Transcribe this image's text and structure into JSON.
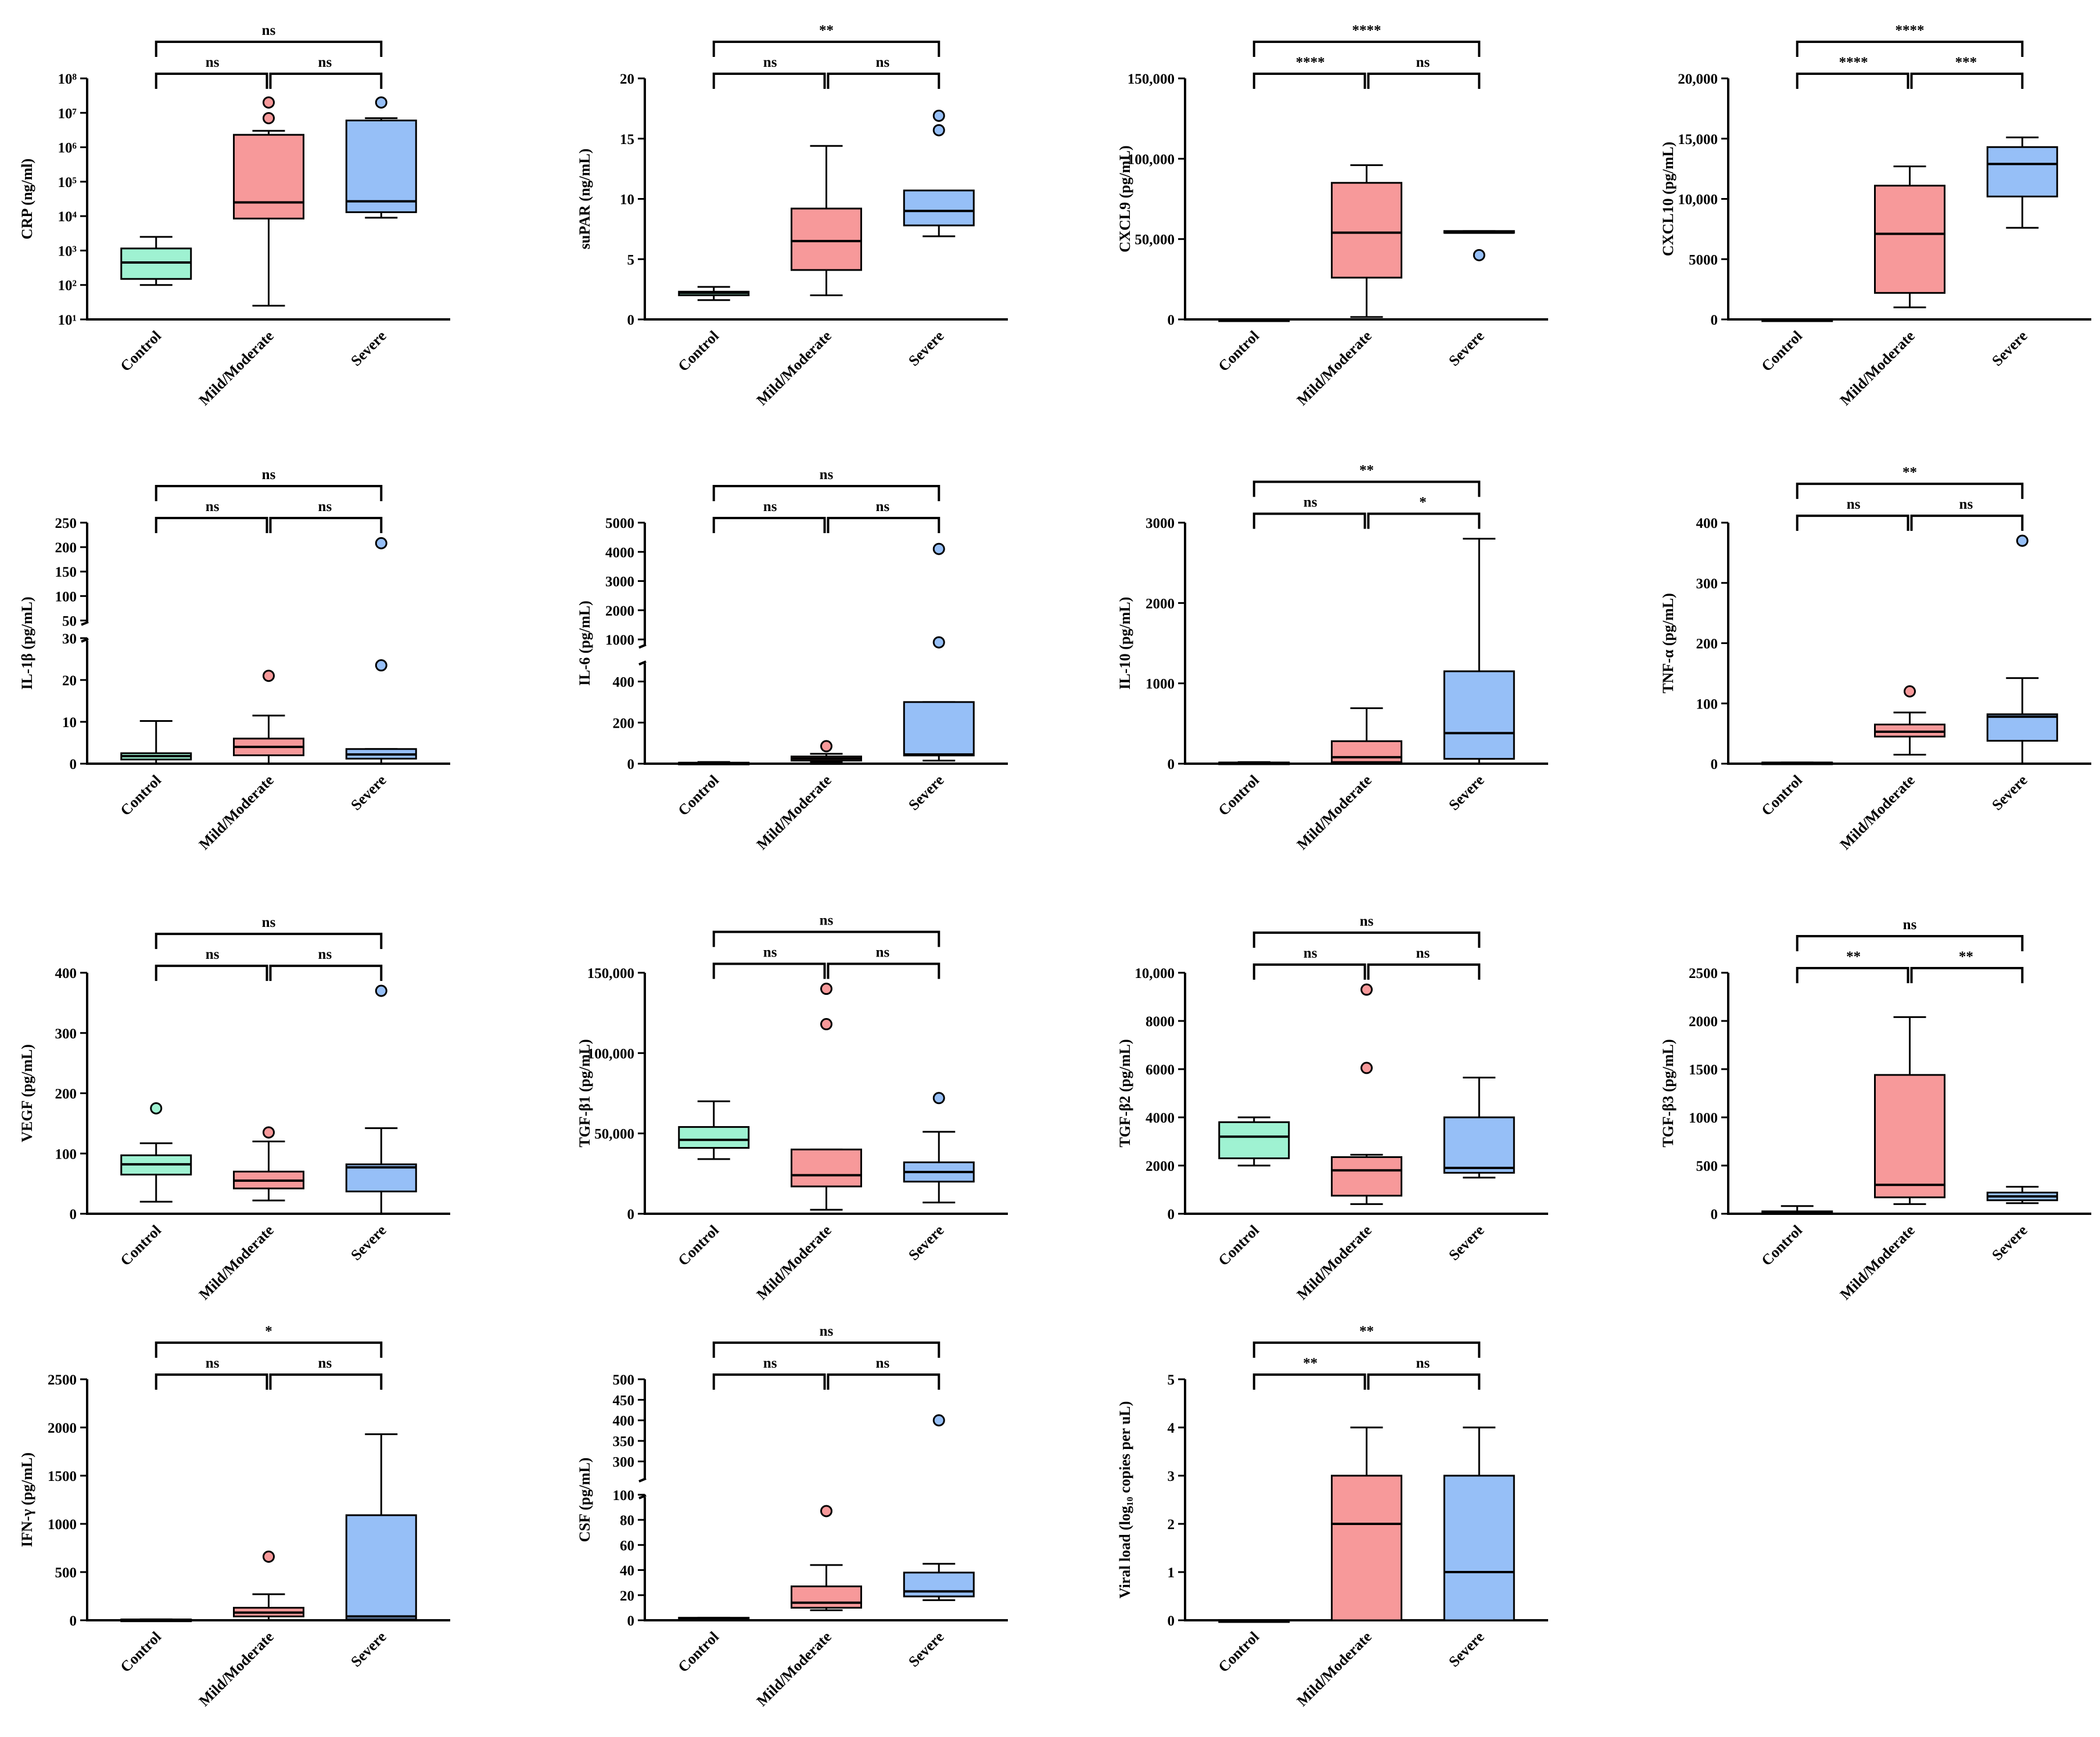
{
  "colors": {
    "Control": "#9ff2d2",
    "Mild/Moderate": "#f7999a",
    "Severe": "#96bff7"
  },
  "chart_data": [
    {
      "type": "box",
      "ylabel": "CRP (ng/ml)",
      "scale": "log",
      "ylim": [
        10,
        100000000
      ],
      "yticks": [
        10,
        100,
        1000,
        10000,
        100000,
        1000000,
        10000000,
        100000000
      ],
      "ytick_labels": [
        "10¹",
        "10²",
        "10³",
        "10⁴",
        "10⁵",
        "10⁶",
        "10⁷",
        "10⁸"
      ],
      "categories": [
        "Control",
        "Mild/Moderate",
        "Severe"
      ],
      "boxes": [
        {
          "min": 100,
          "q1": 150,
          "median": 450,
          "q3": 1150,
          "max": 2500,
          "outliers": []
        },
        {
          "min": 25,
          "q1": 8500,
          "median": 25000,
          "q3": 2300000,
          "max": 3000000,
          "outliers": [
            20000000,
            7000000
          ]
        },
        {
          "min": 9000,
          "q1": 13000,
          "median": 27000,
          "q3": 6000000,
          "max": 7000000,
          "outliers": [
            20000000
          ]
        }
      ],
      "significance": [
        {
          "from": 0,
          "to": 1,
          "label": "ns"
        },
        {
          "from": 1,
          "to": 2,
          "label": "ns"
        },
        {
          "from": 0,
          "to": 2,
          "label": "ns"
        }
      ]
    },
    {
      "type": "box",
      "ylabel": "suPAR (ng/mL)",
      "scale": "linear",
      "ylim": [
        0,
        20
      ],
      "yticks": [
        0,
        5,
        10,
        15,
        20
      ],
      "categories": [
        "Control",
        "Mild/Moderate",
        "Severe"
      ],
      "boxes": [
        {
          "min": 1.6,
          "q1": 2.0,
          "median": 2.2,
          "q3": 2.3,
          "max": 2.7,
          "outliers": []
        },
        {
          "min": 2.0,
          "q1": 4.1,
          "median": 6.5,
          "q3": 9.2,
          "max": 14.4,
          "outliers": []
        },
        {
          "min": 6.9,
          "q1": 7.8,
          "median": 9.0,
          "q3": 10.7,
          "max": 10.7,
          "outliers": [
            15.7,
            16.9
          ]
        }
      ],
      "significance": [
        {
          "from": 0,
          "to": 1,
          "label": "ns"
        },
        {
          "from": 1,
          "to": 2,
          "label": "ns"
        },
        {
          "from": 0,
          "to": 2,
          "label": "**"
        }
      ]
    },
    {
      "type": "box",
      "ylabel": "CXCL9 (pg/mL)",
      "scale": "linear",
      "ylim": [
        0,
        150000
      ],
      "yticks": [
        0,
        50000,
        100000,
        150000
      ],
      "ytick_labels": [
        "0",
        "50,000",
        "100,000",
        "150,000"
      ],
      "categories": [
        "Control",
        "Mild/Moderate",
        "Severe"
      ],
      "boxes": [
        {
          "min": 0,
          "q1": 0,
          "median": 0,
          "q3": 0,
          "max": 0,
          "outliers": []
        },
        {
          "min": 1500,
          "q1": 26000,
          "median": 54000,
          "q3": 85000,
          "max": 96000,
          "outliers": []
        },
        {
          "min": 54000,
          "q1": 54000,
          "median": 54000,
          "q3": 55000,
          "max": 55000,
          "outliers": [
            40000
          ]
        }
      ],
      "significance": [
        {
          "from": 0,
          "to": 1,
          "label": "****"
        },
        {
          "from": 1,
          "to": 2,
          "label": "ns"
        },
        {
          "from": 0,
          "to": 2,
          "label": "****"
        }
      ]
    },
    {
      "type": "box",
      "ylabel": "CXCL10 (pg/mL)",
      "scale": "linear",
      "ylim": [
        0,
        20000
      ],
      "yticks": [
        0,
        5000,
        10000,
        15000,
        20000
      ],
      "ytick_labels": [
        "0",
        "5000",
        "10,000",
        "15,000",
        "20,000"
      ],
      "categories": [
        "Control",
        "Mild/Moderate",
        "Severe"
      ],
      "boxes": [
        {
          "min": 0,
          "q1": 0,
          "median": 0,
          "q3": 0,
          "max": 0,
          "outliers": []
        },
        {
          "min": 1000,
          "q1": 2200,
          "median": 7100,
          "q3": 11100,
          "max": 12700,
          "outliers": []
        },
        {
          "min": 7600,
          "q1": 10200,
          "median": 12900,
          "q3": 14300,
          "max": 15100,
          "outliers": []
        }
      ],
      "significance": [
        {
          "from": 0,
          "to": 1,
          "label": "****"
        },
        {
          "from": 1,
          "to": 2,
          "label": "***"
        },
        {
          "from": 0,
          "to": 2,
          "label": "****"
        }
      ]
    },
    {
      "type": "box",
      "ylabel": "IL-1β (pg/mL)",
      "scale": "broken",
      "ylim": [
        0,
        250
      ],
      "segments": [
        {
          "min": 0,
          "max": 30,
          "frac": 0.55,
          "ticks": [
            0,
            10,
            20,
            30
          ]
        },
        {
          "min": 40,
          "max": 250,
          "frac": 0.45,
          "ticks": [
            50,
            100,
            150,
            200,
            250
          ]
        }
      ],
      "categories": [
        "Control",
        "Mild/Moderate",
        "Severe"
      ],
      "boxes": [
        {
          "min": 0,
          "q1": 1,
          "median": 1.8,
          "q3": 2.5,
          "max": 10.2,
          "outliers": []
        },
        {
          "min": 0,
          "q1": 2,
          "median": 4,
          "q3": 6,
          "max": 11.5,
          "outliers": [
            21
          ]
        },
        {
          "min": 0,
          "q1": 1.2,
          "median": 2.2,
          "q3": 3.5,
          "max": 3.5,
          "outliers": [
            23.5,
            208
          ]
        }
      ],
      "significance": [
        {
          "from": 0,
          "to": 1,
          "label": "ns"
        },
        {
          "from": 1,
          "to": 2,
          "label": "ns"
        },
        {
          "from": 0,
          "to": 2,
          "label": "ns"
        }
      ]
    },
    {
      "type": "box",
      "ylabel": "IL-6 (pg/mL)",
      "scale": "broken",
      "ylim": [
        0,
        5000
      ],
      "segments": [
        {
          "min": 0,
          "max": 500,
          "frac": 0.45,
          "ticks": [
            0,
            200,
            400
          ]
        },
        {
          "min": 700,
          "max": 5000,
          "frac": 0.55,
          "ticks": [
            1000,
            2000,
            3000,
            4000,
            5000
          ]
        }
      ],
      "categories": [
        "Control",
        "Mild/Moderate",
        "Severe"
      ],
      "boxes": [
        {
          "min": 0,
          "q1": 0,
          "median": 3,
          "q3": 5,
          "max": 8,
          "outliers": []
        },
        {
          "min": 8,
          "q1": 15,
          "median": 25,
          "q3": 35,
          "max": 48,
          "outliers": [
            85
          ]
        },
        {
          "min": 15,
          "q1": 40,
          "median": 45,
          "q3": 300,
          "max": 300,
          "outliers": [
            900,
            4100
          ]
        }
      ],
      "significance": [
        {
          "from": 0,
          "to": 1,
          "label": "ns"
        },
        {
          "from": 1,
          "to": 2,
          "label": "ns"
        },
        {
          "from": 0,
          "to": 2,
          "label": "ns"
        }
      ]
    },
    {
      "type": "box",
      "ylabel": "IL-10 (pg/mL)",
      "scale": "linear",
      "ylim": [
        0,
        3000
      ],
      "yticks": [
        0,
        1000,
        2000,
        3000
      ],
      "categories": [
        "Control",
        "Mild/Moderate",
        "Severe"
      ],
      "boxes": [
        {
          "min": 0,
          "q1": 5,
          "median": 10,
          "q3": 15,
          "max": 20,
          "outliers": []
        },
        {
          "min": 0,
          "q1": 20,
          "median": 80,
          "q3": 280,
          "max": 690,
          "outliers": []
        },
        {
          "min": 0,
          "q1": 60,
          "median": 380,
          "q3": 1150,
          "max": 2800,
          "outliers": []
        }
      ],
      "significance": [
        {
          "from": 0,
          "to": 1,
          "label": "ns"
        },
        {
          "from": 1,
          "to": 2,
          "label": "*"
        },
        {
          "from": 0,
          "to": 2,
          "label": "**"
        }
      ]
    },
    {
      "type": "box",
      "ylabel": "TNF-α (pg/mL)",
      "scale": "linear",
      "ylim": [
        0,
        400
      ],
      "yticks": [
        0,
        100,
        200,
        300,
        400
      ],
      "categories": [
        "Control",
        "Mild/Moderate",
        "Severe"
      ],
      "boxes": [
        {
          "min": 0,
          "q1": 0,
          "median": 1,
          "q3": 2,
          "max": 2,
          "outliers": []
        },
        {
          "min": 15,
          "q1": 45,
          "median": 53,
          "q3": 65,
          "max": 85,
          "outliers": [
            120
          ]
        },
        {
          "min": 0,
          "q1": 38,
          "median": 78,
          "q3": 82,
          "max": 142,
          "outliers": [
            370
          ]
        }
      ],
      "significance": [
        {
          "from": 0,
          "to": 1,
          "label": "ns"
        },
        {
          "from": 1,
          "to": 2,
          "label": "ns"
        },
        {
          "from": 0,
          "to": 2,
          "label": "**"
        }
      ]
    },
    {
      "type": "box",
      "ylabel": "VEGF (pg/mL)",
      "scale": "linear",
      "ylim": [
        0,
        400
      ],
      "yticks": [
        0,
        100,
        200,
        300,
        400
      ],
      "categories": [
        "Control",
        "Mild/Moderate",
        "Severe"
      ],
      "boxes": [
        {
          "min": 20,
          "q1": 65,
          "median": 82,
          "q3": 97,
          "max": 117,
          "outliers": [
            175
          ]
        },
        {
          "min": 22,
          "q1": 42,
          "median": 55,
          "q3": 70,
          "max": 120,
          "outliers": [
            135
          ]
        },
        {
          "min": 0,
          "q1": 37,
          "median": 77,
          "q3": 82,
          "max": 142,
          "outliers": [
            370
          ]
        }
      ],
      "significance": [
        {
          "from": 0,
          "to": 1,
          "label": "ns"
        },
        {
          "from": 1,
          "to": 2,
          "label": "ns"
        },
        {
          "from": 0,
          "to": 2,
          "label": "ns"
        }
      ]
    },
    {
      "type": "box",
      "ylabel": "TGF-β1 (pg/mL)",
      "scale": "linear",
      "ylim": [
        0,
        150000
      ],
      "yticks": [
        0,
        50000,
        100000,
        150000
      ],
      "ytick_labels": [
        "0",
        "50,000",
        "100,000",
        "150,000"
      ],
      "categories": [
        "Control",
        "Mild/Moderate",
        "Severe"
      ],
      "boxes": [
        {
          "min": 34000,
          "q1": 41000,
          "median": 46000,
          "q3": 54000,
          "max": 70000,
          "outliers": []
        },
        {
          "min": 2500,
          "q1": 17000,
          "median": 24000,
          "q3": 40000,
          "max": 40000,
          "outliers": [
            140000,
            118000
          ]
        },
        {
          "min": 7000,
          "q1": 20000,
          "median": 26000,
          "q3": 32000,
          "max": 51000,
          "outliers": [
            72000
          ]
        }
      ],
      "significance": [
        {
          "from": 0,
          "to": 1,
          "label": "ns"
        },
        {
          "from": 1,
          "to": 2,
          "label": "ns"
        },
        {
          "from": 0,
          "to": 2,
          "label": "ns"
        }
      ]
    },
    {
      "type": "box",
      "ylabel": "TGF-β2 (pg/mL)",
      "scale": "linear",
      "ylim": [
        0,
        10000
      ],
      "yticks": [
        0,
        2000,
        4000,
        6000,
        8000,
        10000
      ],
      "ytick_labels": [
        "0",
        "2000",
        "4000",
        "6000",
        "8000",
        "10,000"
      ],
      "categories": [
        "Control",
        "Mild/Moderate",
        "Severe"
      ],
      "boxes": [
        {
          "min": 2000,
          "q1": 2300,
          "median": 3200,
          "q3": 3800,
          "max": 4000,
          "outliers": []
        },
        {
          "min": 400,
          "q1": 750,
          "median": 1800,
          "q3": 2350,
          "max": 2450,
          "outliers": [
            9300,
            6050
          ]
        },
        {
          "min": 1500,
          "q1": 1700,
          "median": 1900,
          "q3": 4000,
          "max": 5650,
          "outliers": []
        }
      ],
      "significance": [
        {
          "from": 0,
          "to": 1,
          "label": "ns"
        },
        {
          "from": 1,
          "to": 2,
          "label": "ns"
        },
        {
          "from": 0,
          "to": 2,
          "label": "ns"
        }
      ]
    },
    {
      "type": "box",
      "ylabel": "TGF-β3 (pg/mL)",
      "scale": "linear",
      "ylim": [
        0,
        2500
      ],
      "yticks": [
        0,
        500,
        1000,
        1500,
        2000,
        2500
      ],
      "categories": [
        "Control",
        "Mild/Moderate",
        "Severe"
      ],
      "boxes": [
        {
          "min": 0,
          "q1": 5,
          "median": 15,
          "q3": 25,
          "max": 80,
          "outliers": []
        },
        {
          "min": 100,
          "q1": 170,
          "median": 300,
          "q3": 1440,
          "max": 2040,
          "outliers": []
        },
        {
          "min": 110,
          "q1": 140,
          "median": 180,
          "q3": 220,
          "max": 280,
          "outliers": []
        }
      ],
      "significance": [
        {
          "from": 0,
          "to": 1,
          "label": "**"
        },
        {
          "from": 1,
          "to": 2,
          "label": "**"
        },
        {
          "from": 0,
          "to": 2,
          "label": "ns"
        }
      ]
    },
    {
      "type": "box",
      "ylabel": "IFN-γ (pg/mL)",
      "scale": "linear",
      "ylim": [
        0,
        2500
      ],
      "yticks": [
        0,
        500,
        1000,
        1500,
        2000,
        2500
      ],
      "categories": [
        "Control",
        "Mild/Moderate",
        "Severe"
      ],
      "boxes": [
        {
          "min": 0,
          "q1": 2,
          "median": 5,
          "q3": 8,
          "max": 10,
          "outliers": []
        },
        {
          "min": 0,
          "q1": 40,
          "median": 80,
          "q3": 130,
          "max": 270,
          "outliers": [
            660
          ]
        },
        {
          "min": 0,
          "q1": 10,
          "median": 40,
          "q3": 1090,
          "max": 1930,
          "outliers": []
        }
      ],
      "significance": [
        {
          "from": 0,
          "to": 1,
          "label": "ns"
        },
        {
          "from": 1,
          "to": 2,
          "label": "ns"
        },
        {
          "from": 0,
          "to": 2,
          "label": "*"
        }
      ]
    },
    {
      "type": "box",
      "ylabel": "CSF (pg/mL)",
      "scale": "broken",
      "ylim": [
        0,
        500
      ],
      "segments": [
        {
          "min": 0,
          "max": 100,
          "frac": 0.55,
          "ticks": [
            0,
            20,
            40,
            60,
            80,
            100
          ]
        },
        {
          "min": 250,
          "max": 500,
          "frac": 0.45,
          "ticks": [
            300,
            350,
            400,
            450,
            500
          ]
        }
      ],
      "categories": [
        "Control",
        "Mild/Moderate",
        "Severe"
      ],
      "boxes": [
        {
          "min": 0,
          "q1": 0,
          "median": 1,
          "q3": 2,
          "max": 2,
          "outliers": []
        },
        {
          "min": 8,
          "q1": 10,
          "median": 14,
          "q3": 27,
          "max": 44,
          "outliers": [
            87
          ]
        },
        {
          "min": 16,
          "q1": 19,
          "median": 23,
          "q3": 38,
          "max": 45,
          "outliers": [
            400
          ]
        }
      ],
      "significance": [
        {
          "from": 0,
          "to": 1,
          "label": "ns"
        },
        {
          "from": 1,
          "to": 2,
          "label": "ns"
        },
        {
          "from": 0,
          "to": 2,
          "label": "ns"
        }
      ]
    },
    {
      "type": "box",
      "ylabel": "Viral load (log₁₀ copies per uL)",
      "scale": "linear",
      "ylim": [
        0,
        5
      ],
      "yticks": [
        0,
        1,
        2,
        3,
        4,
        5
      ],
      "categories": [
        "Control",
        "Mild/Moderate",
        "Severe"
      ],
      "boxes": [
        {
          "min": 0,
          "q1": 0,
          "median": 0,
          "q3": 0,
          "max": 0,
          "outliers": []
        },
        {
          "min": 0,
          "q1": 0,
          "median": 2,
          "q3": 3,
          "max": 4,
          "outliers": []
        },
        {
          "min": 0,
          "q1": 0,
          "median": 1,
          "q3": 3,
          "max": 4,
          "outliers": []
        }
      ],
      "significance": [
        {
          "from": 0,
          "to": 1,
          "label": "**"
        },
        {
          "from": 1,
          "to": 2,
          "label": "ns"
        },
        {
          "from": 0,
          "to": 2,
          "label": "**"
        }
      ]
    }
  ]
}
